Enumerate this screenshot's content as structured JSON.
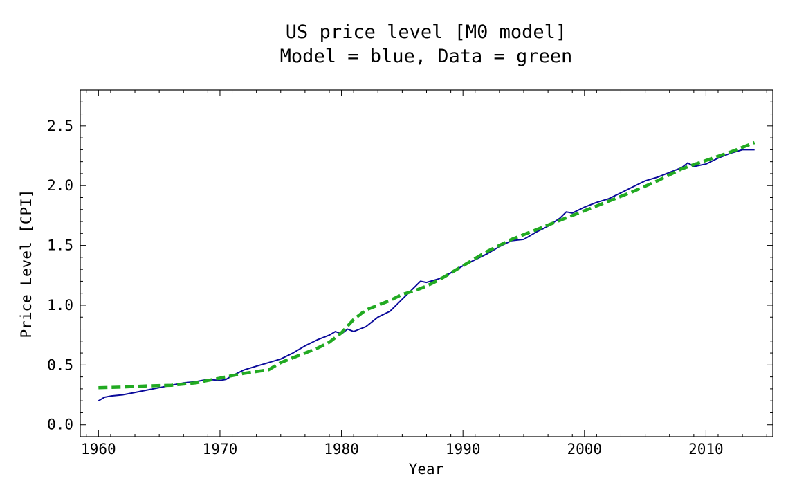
{
  "chart_data": {
    "type": "line",
    "title": "US price level [M0 model]",
    "subtitle": "Model = blue, Data = green",
    "xlabel": "Year",
    "ylabel": "Price Level [CPI]",
    "xlim": [
      1958.5,
      2015.5
    ],
    "ylim": [
      -0.1,
      2.8
    ],
    "x_ticks": [
      1960,
      1970,
      1980,
      1990,
      2000,
      2010
    ],
    "x_tick_labels": [
      "1960",
      "1970",
      "1980",
      "1990",
      "2000",
      "2010"
    ],
    "y_ticks": [
      0.0,
      0.5,
      1.0,
      1.5,
      2.0,
      2.5
    ],
    "y_tick_labels": [
      "0.0",
      "0.5",
      "1.0",
      "1.5",
      "2.0",
      "2.5"
    ],
    "grid": false,
    "series": [
      {
        "color": "#0a0a9a",
        "style": "solid",
        "x": [
          1960,
          1960.5,
          1961,
          1962,
          1963,
          1964,
          1965,
          1966,
          1967,
          1968,
          1969,
          1970,
          1970.5,
          1971,
          1972,
          1973,
          1974,
          1975,
          1976,
          1977,
          1978,
          1979,
          1979.5,
          1980,
          1980.5,
          1981,
          1981.5,
          1982,
          1983,
          1984,
          1985,
          1986,
          1986.5,
          1987,
          1988,
          1989,
          1990,
          1991,
          1992,
          1993,
          1994,
          1995,
          1996,
          1997,
          1998,
          1998.5,
          1999,
          2000,
          2001,
          2002,
          2003,
          2004,
          2005,
          2006,
          2007,
          2008,
          2008.5,
          2009,
          2010,
          2011,
          2012,
          2013,
          2014
        ],
        "values": [
          0.2,
          0.23,
          0.24,
          0.25,
          0.27,
          0.29,
          0.31,
          0.33,
          0.35,
          0.36,
          0.38,
          0.37,
          0.38,
          0.41,
          0.46,
          0.49,
          0.52,
          0.55,
          0.6,
          0.66,
          0.71,
          0.75,
          0.78,
          0.76,
          0.8,
          0.78,
          0.8,
          0.82,
          0.9,
          0.95,
          1.05,
          1.15,
          1.2,
          1.19,
          1.22,
          1.27,
          1.33,
          1.38,
          1.43,
          1.49,
          1.54,
          1.55,
          1.61,
          1.66,
          1.73,
          1.78,
          1.77,
          1.82,
          1.86,
          1.89,
          1.94,
          1.99,
          2.04,
          2.07,
          2.11,
          2.15,
          2.19,
          2.16,
          2.18,
          2.23,
          2.27,
          2.3,
          2.3
        ]
      },
      {
        "color": "#22aa22",
        "style": "dashed",
        "x": [
          1960,
          1962,
          1964,
          1966,
          1968,
          1970,
          1972,
          1974,
          1975,
          1976,
          1977,
          1978,
          1979,
          1980,
          1981,
          1982,
          1983,
          1984,
          1985,
          1986,
          1987,
          1988,
          1990,
          1992,
          1994,
          1996,
          1998,
          2000,
          2002,
          2004,
          2006,
          2008,
          2010,
          2012,
          2014
        ],
        "values": [
          0.31,
          0.315,
          0.325,
          0.33,
          0.35,
          0.39,
          0.43,
          0.46,
          0.52,
          0.56,
          0.6,
          0.64,
          0.69,
          0.77,
          0.88,
          0.96,
          1.0,
          1.04,
          1.09,
          1.12,
          1.16,
          1.21,
          1.33,
          1.45,
          1.55,
          1.63,
          1.71,
          1.79,
          1.87,
          1.95,
          2.04,
          2.14,
          2.21,
          2.28,
          2.36
        ]
      }
    ]
  }
}
